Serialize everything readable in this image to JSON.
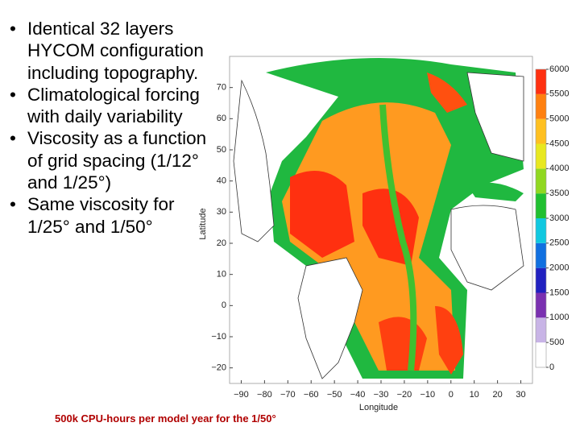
{
  "bullets": [
    "Identical 32 layers HYCOM configuration including topography.",
    "Climatological forcing with daily variability",
    "Viscosity as a function of grid spacing (1/12° and 1/25°)",
    "Same viscosity for 1/25° and 1/50°"
  ],
  "map": {
    "ylabel": "Latitude",
    "xlabel": "Longitude",
    "ylim": [
      -25,
      80
    ],
    "yticks": [
      {
        "value": -20,
        "label": "−20"
      },
      {
        "value": -10,
        "label": "−10"
      },
      0,
      10,
      20,
      30,
      40,
      50,
      60,
      70
    ],
    "xlim": [
      -95,
      35
    ],
    "xticks": [
      {
        "value": -90,
        "label": "−90"
      },
      {
        "value": -80,
        "label": "−80"
      },
      {
        "value": -70,
        "label": "−70"
      },
      {
        "value": -60,
        "label": "−60"
      },
      {
        "value": -50,
        "label": "−50"
      },
      {
        "value": -40,
        "label": "−40"
      },
      {
        "value": -30,
        "label": "−30"
      },
      {
        "value": -20,
        "label": "−20"
      },
      {
        "value": -10,
        "label": "−10"
      },
      0,
      10,
      20,
      30
    ],
    "colorbar": {
      "lim": [
        0,
        6000
      ],
      "ticks": [
        0,
        500,
        1000,
        1500,
        2000,
        2500,
        3000,
        3500,
        4000,
        4500,
        5000,
        5500,
        6000
      ],
      "colors": [
        "#ffffff",
        "#c8b4e6",
        "#7a30b0",
        "#2020c0",
        "#1070e0",
        "#10c8e0",
        "#20c030",
        "#90d820",
        "#e8e820",
        "#ffc020",
        "#ff8010",
        "#ff3010"
      ]
    }
  },
  "footnote": "500k CPU-hours per model year for the 1/50°"
}
